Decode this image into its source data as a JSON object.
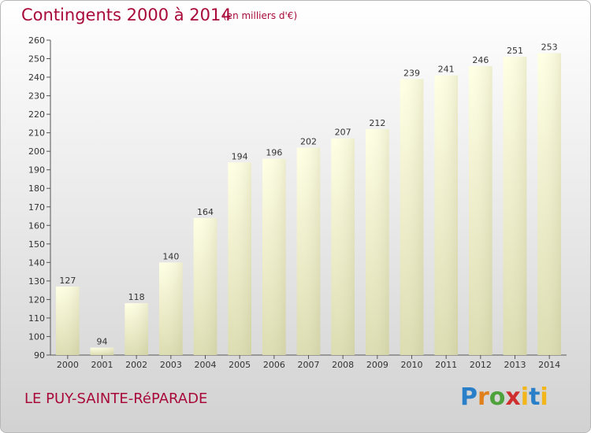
{
  "header": {
    "title": "Contingents 2000 à 2014",
    "subtitle": "(en milliers d'€)"
  },
  "footer": {
    "place": "LE PUY-SAINTE-RéPARADE",
    "brand": "Proxiti"
  },
  "colors": {
    "title": "#a80a3a",
    "bar_top": "#ffffe4",
    "bar_bottom": "#dcdcb0",
    "axis": "#555555"
  },
  "chart_data": {
    "type": "bar",
    "title": "Contingents 2000 à 2014",
    "subtitle": "(en milliers d'€)",
    "categories": [
      "2000",
      "2001",
      "2002",
      "2003",
      "2004",
      "2005",
      "2006",
      "2007",
      "2008",
      "2009",
      "2010",
      "2011",
      "2012",
      "2013",
      "2014"
    ],
    "values": [
      127,
      94,
      118,
      140,
      164,
      194,
      196,
      202,
      207,
      212,
      239,
      241,
      246,
      251,
      253
    ],
    "ylim": [
      90,
      260
    ],
    "yticks": [
      90,
      100,
      110,
      120,
      130,
      140,
      150,
      160,
      170,
      180,
      190,
      200,
      210,
      220,
      230,
      240,
      250,
      260
    ],
    "grid": false,
    "data_labels": true
  }
}
